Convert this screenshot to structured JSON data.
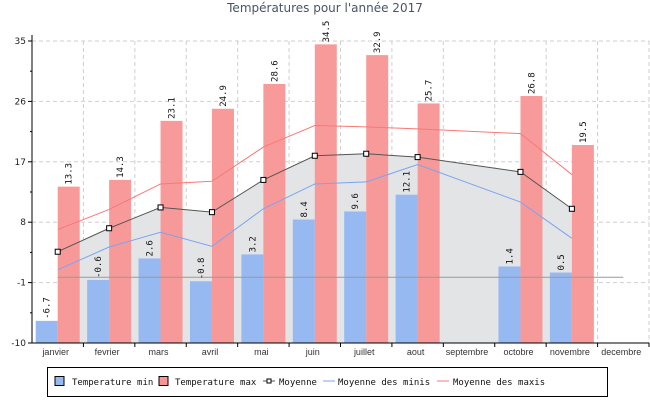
{
  "chart_data": {
    "type": "bar",
    "title": "Températures pour l'année 2017",
    "categories": [
      "janvier",
      "fevrier",
      "mars",
      "avril",
      "mai",
      "juin",
      "juillet",
      "aout",
      "septembre",
      "octobre",
      "novembre",
      "decembre"
    ],
    "ylim": [
      -10,
      35
    ],
    "yticks": [
      35,
      26,
      17,
      8,
      -1,
      -10
    ],
    "grid": true,
    "legend_position": "bottom",
    "series": [
      {
        "name": "Temperature min",
        "kind": "bar",
        "color": "#97b9f2",
        "values": [
          -6.7,
          -0.6,
          2.6,
          -0.8,
          3.2,
          8.4,
          9.6,
          12.1,
          null,
          1.4,
          0.5,
          null
        ],
        "labels": [
          "-6.7",
          "-0.6",
          "2.6",
          "-0.8",
          "3.2",
          "8.4",
          "9.6",
          "12.1",
          null,
          "1.4",
          "0.5",
          null
        ]
      },
      {
        "name": "Temperature max",
        "kind": "bar",
        "color": "#f99595",
        "values": [
          13.3,
          14.3,
          23.1,
          24.9,
          28.6,
          34.5,
          32.9,
          25.7,
          null,
          26.8,
          19.5,
          null
        ],
        "labels": [
          "13.3",
          "14.3",
          "23.1",
          "24.9",
          "28.6",
          "34.5",
          "32.9",
          "25.7",
          null,
          "26.8",
          "19.5",
          null
        ]
      },
      {
        "name": "Moyenne",
        "kind": "area-line",
        "color": "#555555",
        "fill": "#e3e4e6",
        "values": [
          3.6,
          7.1,
          10.2,
          9.5,
          14.3,
          17.9,
          18.2,
          17.7,
          null,
          15.5,
          10.0,
          null
        ]
      },
      {
        "name": "Moyenne des minis",
        "kind": "line",
        "color": "#7aa4f0",
        "values": [
          0.9,
          4.3,
          6.5,
          4.4,
          10.0,
          13.7,
          14.0,
          16.6,
          null,
          11.0,
          5.6,
          null
        ]
      },
      {
        "name": "Moyenne des maxis",
        "kind": "line",
        "color": "#f77878",
        "values": [
          6.9,
          9.9,
          13.7,
          14.1,
          19.2,
          22.4,
          22.2,
          21.9,
          null,
          21.2,
          15.1,
          null
        ]
      }
    ],
    "reference_line": {
      "value": -0.2,
      "color": "#999999"
    }
  }
}
